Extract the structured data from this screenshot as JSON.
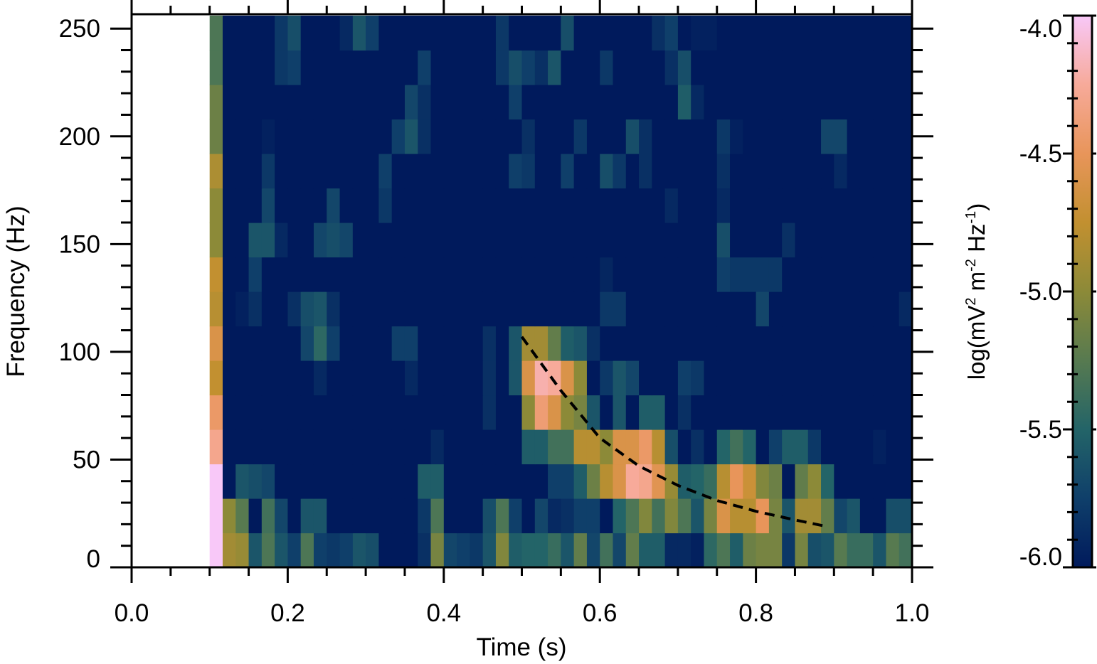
{
  "chart_data": {
    "type": "heatmap",
    "xlabel": "Time (s)",
    "ylabel": "Frequency (Hz)",
    "xlim": [
      0.0,
      1.0
    ],
    "ylim": [
      0,
      256
    ],
    "x_ticks": [
      "0.0",
      "0.2",
      "0.4",
      "0.6",
      "0.8",
      "1.0"
    ],
    "x_tick_values": [
      0.0,
      0.2,
      0.4,
      0.6,
      0.8,
      1.0
    ],
    "y_ticks": [
      "0",
      "50",
      "100",
      "150",
      "200",
      "250"
    ],
    "y_tick_values": [
      0,
      50,
      100,
      150,
      200,
      250
    ],
    "time_start": 0.1,
    "time_step": 0.016667,
    "freq_step": 16,
    "colorbar": {
      "label_parts": [
        {
          "text": "log(mV",
          "sup": false
        },
        {
          "text": "2",
          "sup": true
        },
        {
          "text": " m",
          "sup": false
        },
        {
          "text": "-2",
          "sup": true
        },
        {
          "text": " Hz",
          "sup": false
        },
        {
          "text": "-1",
          "sup": true
        },
        {
          "text": ")",
          "sup": false
        }
      ],
      "range": [
        -6.0,
        -4.0
      ],
      "ticks": [
        "-4.0",
        "-4.5",
        "-5.0",
        "-5.5",
        "-6.0"
      ],
      "tick_values": [
        -4.0,
        -4.5,
        -5.0,
        -5.5,
        -6.0
      ],
      "colormap": [
        {
          "v": -6.0,
          "color": "#001a5c"
        },
        {
          "v": -5.75,
          "color": "#0f3f6a"
        },
        {
          "v": -5.5,
          "color": "#236468"
        },
        {
          "v": -5.25,
          "color": "#577a50"
        },
        {
          "v": -5.0,
          "color": "#8c8a38"
        },
        {
          "v": -4.75,
          "color": "#c29030"
        },
        {
          "v": -4.5,
          "color": "#e8955a"
        },
        {
          "v": -4.25,
          "color": "#f7aa9a"
        },
        {
          "v": -4.0,
          "color": "#f8c8f8"
        }
      ]
    },
    "values": [
      [
        -4.0,
        -4.9,
        -4.95,
        -5.6,
        -5.3,
        -5.6,
        -5.75,
        -5.3,
        -5.75,
        -5.8,
        -5.75,
        -5.6,
        -5.65,
        -6.0,
        -6.0,
        -6.0,
        -5.85,
        -5.1,
        -5.7,
        -5.75,
        -5.8,
        -5.6,
        -5.05,
        -5.55,
        -5.5,
        -5.5,
        -5.4,
        -5.6,
        -5.2,
        -5.7,
        -5.35,
        -5.7,
        -5.2,
        -5.55,
        -5.55,
        -5.9,
        -5.9,
        -5.95,
        -5.45,
        -5.3,
        -5.55,
        -5.15,
        -5.1,
        -5.1,
        -5.8,
        -5.1,
        -5.65,
        -5.6,
        -5.25,
        -5.4,
        -5.4,
        -5.6,
        -5.25,
        -5.35
      ],
      [
        -4.0,
        -5.0,
        -5.25,
        -6.0,
        -5.35,
        -5.7,
        -6.0,
        -5.6,
        -5.6,
        -6.0,
        -6.0,
        -6.0,
        -6.0,
        -6.0,
        -6.0,
        -6.0,
        -5.8,
        -5.3,
        -6.0,
        -6.0,
        -6.0,
        -5.65,
        -5.3,
        -5.75,
        -6.0,
        -5.7,
        -5.9,
        -5.85,
        -5.75,
        -5.75,
        -6.0,
        -5.5,
        -5.3,
        -5.05,
        -5.35,
        -5.05,
        -5.3,
        -5.6,
        -5.1,
        -4.6,
        -4.8,
        -4.8,
        -4.5,
        -5.1,
        -5.6,
        -4.9,
        -4.9,
        -5.2,
        -5.7,
        -5.6,
        -6.0,
        -6.0,
        -5.65,
        -5.65
      ],
      [
        -4.0,
        -6.0,
        -5.6,
        -5.65,
        -5.7,
        -6.0,
        -6.0,
        -6.0,
        -6.0,
        -6.0,
        -6.0,
        -6.0,
        -6.0,
        -6.0,
        -6.0,
        -6.0,
        -5.55,
        -5.55,
        -6.0,
        -6.0,
        -6.0,
        -6.0,
        -6.0,
        -6.0,
        -6.0,
        -6.0,
        -5.75,
        -5.75,
        -5.55,
        -5.15,
        -4.8,
        -4.6,
        -4.25,
        -4.3,
        -4.55,
        -4.95,
        -5.55,
        -5.5,
        -5.4,
        -4.8,
        -4.5,
        -4.7,
        -5.05,
        -5.15,
        -6.0,
        -5.2,
        -5.0,
        -5.5,
        -6.0,
        -6.0,
        -6.0,
        -6.0,
        -6.0,
        -6.0
      ],
      [
        -4.3,
        -6.0,
        -6.0,
        -6.0,
        -6.0,
        -6.0,
        -6.0,
        -6.0,
        -6.0,
        -6.0,
        -6.0,
        -6.0,
        -6.0,
        -6.0,
        -6.0,
        -6.0,
        -6.0,
        -5.9,
        -6.0,
        -6.0,
        -6.0,
        -6.0,
        -6.0,
        -6.0,
        -5.55,
        -5.55,
        -5.35,
        -5.35,
        -4.8,
        -4.8,
        -5.0,
        -4.6,
        -4.6,
        -4.45,
        -4.8,
        -5.65,
        -6.0,
        -5.85,
        -6.0,
        -5.5,
        -5.35,
        -5.5,
        -6.0,
        -5.75,
        -5.55,
        -5.55,
        -5.8,
        -6.0,
        -6.0,
        -6.0,
        -6.0,
        -5.95,
        -6.0,
        -6.0
      ],
      [
        -4.45,
        -6.0,
        -6.0,
        -6.0,
        -6.0,
        -6.0,
        -6.0,
        -6.0,
        -6.0,
        -6.0,
        -6.0,
        -6.0,
        -6.0,
        -6.0,
        -6.0,
        -6.0,
        -6.0,
        -6.0,
        -6.0,
        -6.0,
        -6.0,
        -5.85,
        -6.0,
        -6.0,
        -5.0,
        -4.4,
        -4.6,
        -5.0,
        -5.1,
        -5.6,
        -6.0,
        -5.6,
        -6.0,
        -5.55,
        -5.55,
        -6.0,
        -5.85,
        -6.0,
        -6.0,
        -6.0,
        -6.0,
        -6.0,
        -6.0,
        -6.0,
        -6.0,
        -6.0,
        -6.0,
        -6.0,
        -6.0,
        -6.0,
        -6.0,
        -6.0,
        -6.0,
        -6.0
      ],
      [
        -4.75,
        -6.0,
        -6.0,
        -6.0,
        -6.0,
        -6.0,
        -6.0,
        -6.0,
        -5.9,
        -6.0,
        -6.0,
        -6.0,
        -6.0,
        -6.0,
        -6.0,
        -5.9,
        -6.0,
        -6.0,
        -6.0,
        -6.0,
        -6.0,
        -5.85,
        -6.0,
        -5.6,
        -4.6,
        -4.2,
        -4.25,
        -4.6,
        -5.0,
        -6.0,
        -5.8,
        -5.6,
        -5.7,
        -6.0,
        -6.0,
        -6.0,
        -5.75,
        -5.8,
        -6.0,
        -6.0,
        -6.0,
        -6.0,
        -6.0,
        -6.0,
        -6.0,
        -6.0,
        -6.0,
        -6.0,
        -6.0,
        -6.0,
        -6.0,
        -6.0,
        -6.0,
        -6.0
      ],
      [
        -4.6,
        -6.0,
        -6.0,
        -6.0,
        -6.0,
        -6.0,
        -6.0,
        -5.7,
        -5.45,
        -5.75,
        -6.0,
        -6.0,
        -6.0,
        -6.0,
        -5.75,
        -5.75,
        -6.0,
        -6.0,
        -6.0,
        -6.0,
        -6.0,
        -5.85,
        -6.0,
        -5.6,
        -4.9,
        -4.9,
        -5.2,
        -5.55,
        -5.6,
        -5.85,
        -6.0,
        -6.0,
        -6.0,
        -6.0,
        -6.0,
        -6.0,
        -6.0,
        -6.0,
        -6.0,
        -6.0,
        -6.0,
        -6.0,
        -6.0,
        -6.0,
        -6.0,
        -6.0,
        -6.0,
        -6.0,
        -6.0,
        -6.0,
        -6.0,
        -6.0,
        -6.0,
        -6.0
      ],
      [
        -4.8,
        -6.0,
        -5.95,
        -5.85,
        -6.0,
        -6.0,
        -5.85,
        -5.65,
        -5.6,
        -5.85,
        -6.0,
        -6.0,
        -6.0,
        -6.0,
        -6.0,
        -6.0,
        -6.0,
        -6.0,
        -6.0,
        -6.0,
        -6.0,
        -6.0,
        -6.0,
        -6.0,
        -6.0,
        -6.0,
        -6.0,
        -6.0,
        -6.0,
        -6.0,
        -5.8,
        -5.8,
        -6.0,
        -6.0,
        -6.0,
        -6.0,
        -6.0,
        -6.0,
        -6.0,
        -6.0,
        -6.0,
        -6.0,
        -5.7,
        -6.0,
        -6.0,
        -6.0,
        -6.0,
        -6.0,
        -6.0,
        -6.0,
        -6.0,
        -6.0,
        -6.0,
        -5.9
      ],
      [
        -4.75,
        -6.0,
        -6.0,
        -5.75,
        -6.0,
        -6.0,
        -6.0,
        -6.0,
        -6.0,
        -6.0,
        -6.0,
        -6.0,
        -6.0,
        -6.0,
        -6.0,
        -6.0,
        -6.0,
        -6.0,
        -6.0,
        -6.0,
        -6.0,
        -6.0,
        -6.0,
        -6.0,
        -6.0,
        -6.0,
        -6.0,
        -6.0,
        -6.0,
        -6.0,
        -5.92,
        -6.0,
        -6.0,
        -6.0,
        -6.0,
        -6.0,
        -6.0,
        -6.0,
        -6.0,
        -5.75,
        -5.8,
        -5.8,
        -5.8,
        -5.8,
        -6.0,
        -6.0,
        -6.0,
        -6.0,
        -6.0,
        -6.0,
        -6.0,
        -6.0,
        -6.0,
        -6.0
      ],
      [
        -5.0,
        -6.0,
        -6.0,
        -5.6,
        -5.6,
        -5.9,
        -6.0,
        -6.0,
        -5.7,
        -5.65,
        -5.7,
        -6.0,
        -6.0,
        -6.0,
        -6.0,
        -6.0,
        -6.0,
        -6.0,
        -6.0,
        -6.0,
        -6.0,
        -6.0,
        -6.0,
        -6.0,
        -6.0,
        -6.0,
        -6.0,
        -6.0,
        -6.0,
        -6.0,
        -6.0,
        -6.0,
        -6.0,
        -6.0,
        -6.0,
        -6.0,
        -6.0,
        -6.0,
        -6.0,
        -5.65,
        -6.0,
        -6.0,
        -6.0,
        -6.0,
        -5.85,
        -6.0,
        -6.0,
        -6.0,
        -6.0,
        -6.0,
        -6.0,
        -6.0,
        -6.0,
        -6.0
      ],
      [
        -5.0,
        -6.0,
        -6.0,
        -6.0,
        -5.7,
        -6.0,
        -6.0,
        -6.0,
        -6.0,
        -5.7,
        -6.0,
        -6.0,
        -6.0,
        -5.8,
        -6.0,
        -6.0,
        -6.0,
        -6.0,
        -6.0,
        -6.0,
        -6.0,
        -6.0,
        -6.0,
        -6.0,
        -6.0,
        -6.0,
        -6.0,
        -6.0,
        -6.0,
        -6.0,
        -6.0,
        -6.0,
        -6.0,
        -6.0,
        -6.0,
        -5.9,
        -6.0,
        -6.0,
        -6.0,
        -5.9,
        -6.0,
        -6.0,
        -6.0,
        -6.0,
        -6.0,
        -6.0,
        -6.0,
        -6.0,
        -6.0,
        -6.0,
        -6.0,
        -6.0,
        -6.0,
        -6.0
      ],
      [
        -4.85,
        -6.0,
        -6.0,
        -6.0,
        -5.8,
        -6.0,
        -6.0,
        -6.0,
        -6.0,
        -6.0,
        -6.0,
        -6.0,
        -6.0,
        -5.75,
        -6.0,
        -6.0,
        -6.0,
        -6.0,
        -6.0,
        -6.0,
        -6.0,
        -6.0,
        -6.0,
        -5.75,
        -5.8,
        -6.0,
        -6.0,
        -5.75,
        -6.0,
        -6.0,
        -5.65,
        -5.8,
        -6.0,
        -5.85,
        -6.0,
        -6.0,
        -6.0,
        -6.0,
        -6.0,
        -5.85,
        -6.0,
        -6.0,
        -6.0,
        -6.0,
        -6.0,
        -6.0,
        -6.0,
        -6.0,
        -5.9,
        -6.0,
        -6.0,
        -6.0,
        -6.0,
        -6.0
      ],
      [
        -5.15,
        -6.0,
        -6.0,
        -6.0,
        -5.95,
        -6.0,
        -6.0,
        -6.0,
        -6.0,
        -6.0,
        -6.0,
        -6.0,
        -6.0,
        -6.0,
        -5.75,
        -5.6,
        -5.85,
        -6.0,
        -6.0,
        -6.0,
        -6.0,
        -6.0,
        -6.0,
        -6.0,
        -5.85,
        -6.0,
        -6.0,
        -6.0,
        -5.8,
        -6.0,
        -6.0,
        -6.0,
        -5.65,
        -5.85,
        -6.0,
        -6.0,
        -6.0,
        -6.0,
        -6.0,
        -5.8,
        -5.95,
        -6.0,
        -6.0,
        -6.0,
        -6.0,
        -6.0,
        -6.0,
        -5.7,
        -5.7,
        -6.0,
        -6.0,
        -6.0,
        -6.0,
        -6.0
      ],
      [
        -5.15,
        -6.0,
        -6.0,
        -6.0,
        -6.0,
        -6.0,
        -6.0,
        -6.0,
        -6.0,
        -6.0,
        -6.0,
        -6.0,
        -6.0,
        -6.0,
        -6.0,
        -5.7,
        -5.85,
        -6.0,
        -6.0,
        -6.0,
        -6.0,
        -6.0,
        -6.0,
        -5.75,
        -6.0,
        -6.0,
        -6.0,
        -6.0,
        -6.0,
        -6.0,
        -6.0,
        -6.0,
        -6.0,
        -6.0,
        -6.0,
        -6.0,
        -5.55,
        -5.9,
        -6.0,
        -6.0,
        -6.0,
        -6.0,
        -6.0,
        -6.0,
        -6.0,
        -6.0,
        -6.0,
        -6.0,
        -6.0,
        -6.0,
        -6.0,
        -6.0,
        -6.0,
        -6.0
      ],
      [
        -5.3,
        -6.0,
        -6.0,
        -6.0,
        -6.0,
        -5.8,
        -5.75,
        -6.0,
        -6.0,
        -6.0,
        -6.0,
        -6.0,
        -6.0,
        -6.0,
        -6.0,
        -6.0,
        -5.75,
        -6.0,
        -6.0,
        -6.0,
        -6.0,
        -6.0,
        -5.8,
        -5.65,
        -5.75,
        -5.85,
        -5.6,
        -6.0,
        -6.0,
        -6.0,
        -5.8,
        -6.0,
        -6.0,
        -6.0,
        -6.0,
        -5.85,
        -5.65,
        -6.0,
        -6.0,
        -6.0,
        -6.0,
        -6.0,
        -6.0,
        -6.0,
        -6.0,
        -6.0,
        -6.0,
        -6.0,
        -6.0,
        -6.0,
        -6.0,
        -6.0,
        -6.0,
        -6.0
      ],
      [
        -5.3,
        -6.0,
        -6.0,
        -6.0,
        -6.0,
        -5.8,
        -5.65,
        -6.0,
        -6.0,
        -6.0,
        -5.9,
        -5.6,
        -5.75,
        -6.0,
        -6.0,
        -6.0,
        -6.0,
        -6.0,
        -6.0,
        -6.0,
        -6.0,
        -6.0,
        -5.8,
        -6.0,
        -6.0,
        -6.0,
        -6.0,
        -5.65,
        -6.0,
        -6.0,
        -6.0,
        -6.0,
        -6.0,
        -6.0,
        -5.85,
        -5.75,
        -6.0,
        -5.95,
        -5.95,
        -6.0,
        -6.0,
        -6.0,
        -6.0,
        -6.0,
        -6.0,
        -6.0,
        -6.0,
        -6.0,
        -6.0,
        -6.0,
        -6.0,
        -6.0,
        -6.0,
        -6.0
      ]
    ],
    "dashed_curve": {
      "style": "dashed",
      "color": "#000000",
      "points": [
        [
          0.5,
          107
        ],
        [
          0.55,
          82
        ],
        [
          0.6,
          60
        ],
        [
          0.65,
          47
        ],
        [
          0.7,
          38
        ],
        [
          0.75,
          31
        ],
        [
          0.8,
          26
        ],
        [
          0.85,
          22
        ],
        [
          0.89,
          19
        ]
      ]
    },
    "grid": false,
    "legend": "none"
  }
}
